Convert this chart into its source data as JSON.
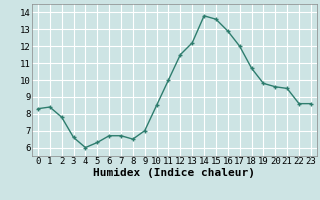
{
  "x": [
    0,
    1,
    2,
    3,
    4,
    5,
    6,
    7,
    8,
    9,
    10,
    11,
    12,
    13,
    14,
    15,
    16,
    17,
    18,
    19,
    20,
    21,
    22,
    23
  ],
  "y": [
    8.3,
    8.4,
    7.8,
    6.6,
    6.0,
    6.3,
    6.7,
    6.7,
    6.5,
    7.0,
    8.5,
    10.0,
    11.5,
    12.2,
    13.8,
    13.6,
    12.9,
    12.0,
    10.7,
    9.8,
    9.6,
    9.5,
    8.6,
    8.6
  ],
  "line_color": "#2e7d6e",
  "marker": "+",
  "marker_color": "#2e7d6e",
  "xlabel": "Humidex (Indice chaleur)",
  "ylim": [
    5.5,
    14.5
  ],
  "xlim": [
    -0.5,
    23.5
  ],
  "yticks": [
    6,
    7,
    8,
    9,
    10,
    11,
    12,
    13,
    14
  ],
  "xticks": [
    0,
    1,
    2,
    3,
    4,
    5,
    6,
    7,
    8,
    9,
    10,
    11,
    12,
    13,
    14,
    15,
    16,
    17,
    18,
    19,
    20,
    21,
    22,
    23
  ],
  "bg_color": "#cde4e4",
  "grid_color": "#ffffff",
  "tick_label_fontsize": 6.5,
  "xlabel_fontsize": 8
}
